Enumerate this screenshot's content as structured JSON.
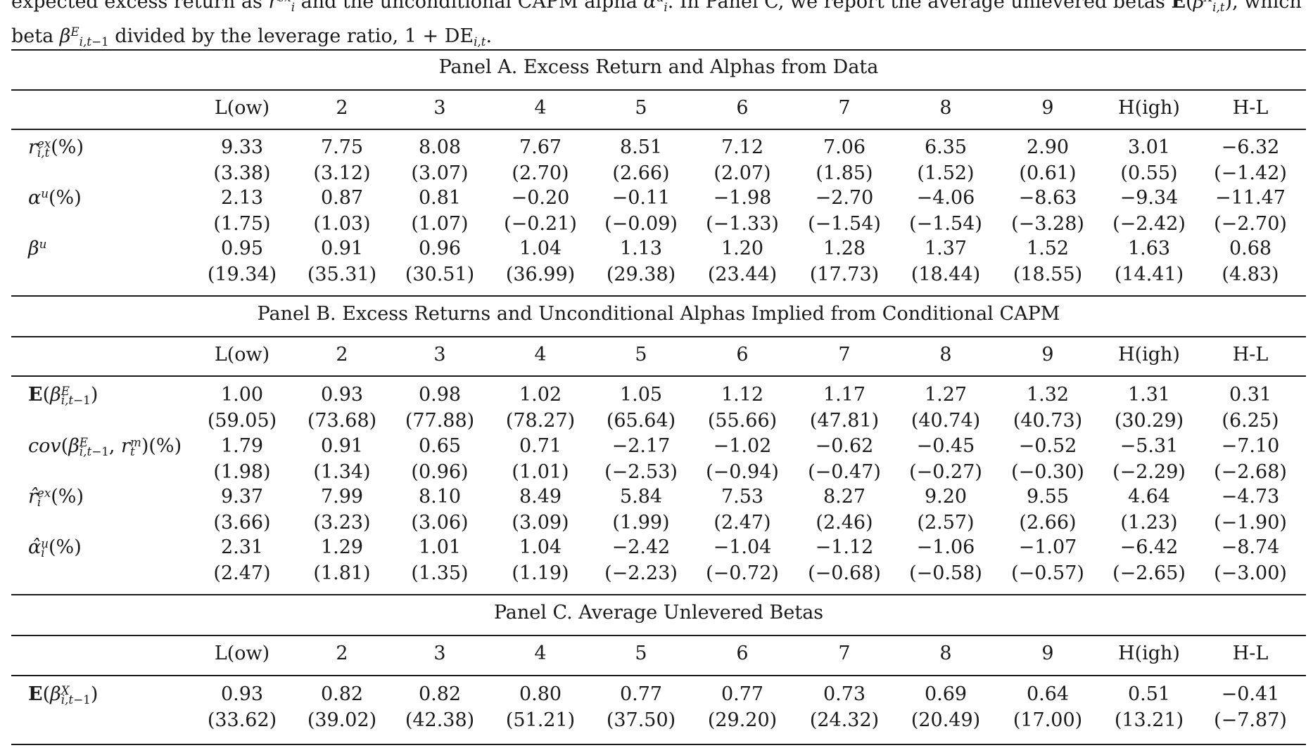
{
  "caption": {
    "line1_a": "expected excess return as ",
    "line1_b": " and the unconditional CAPM alpha ",
    "line1_c": ". In Panel C, we report the average unlevered betas ",
    "line1_d": ", which is the equity",
    "line2_a": "beta ",
    "line2_b": " divided by the leverage ratio, ",
    "line2_c": "1 + DE",
    "line2_d": "."
  },
  "columns": [
    "L(ow)",
    "2",
    "3",
    "4",
    "5",
    "6",
    "7",
    "8",
    "9",
    "H(igh)",
    "H-L"
  ],
  "panel_a": {
    "title": "Panel A. Excess Return and Alphas from Data",
    "rows": [
      {
        "label": "r_ex",
        "values": [
          "9.33",
          "7.75",
          "8.08",
          "7.67",
          "8.51",
          "7.12",
          "7.06",
          "6.35",
          "2.90",
          "3.01",
          "−6.32"
        ],
        "tstats": [
          "(3.38)",
          "(3.12)",
          "(3.07)",
          "(2.70)",
          "(2.66)",
          "(2.07)",
          "(1.85)",
          "(1.52)",
          "(0.61)",
          "(0.55)",
          "(−1.42)"
        ]
      },
      {
        "label": "alpha_u",
        "values": [
          "2.13",
          "0.87",
          "0.81",
          "−0.20",
          "−0.11",
          "−1.98",
          "−2.70",
          "−4.06",
          "−8.63",
          "−9.34",
          "−11.47"
        ],
        "tstats": [
          "(1.75)",
          "(1.03)",
          "(1.07)",
          "(−0.21)",
          "(−0.09)",
          "(−1.33)",
          "(−1.54)",
          "(−1.54)",
          "(−3.28)",
          "(−2.42)",
          "(−2.70)"
        ]
      },
      {
        "label": "beta_u",
        "values": [
          "0.95",
          "0.91",
          "0.96",
          "1.04",
          "1.13",
          "1.20",
          "1.28",
          "1.37",
          "1.52",
          "1.63",
          "0.68"
        ],
        "tstats": [
          "(19.34)",
          "(35.31)",
          "(30.51)",
          "(36.99)",
          "(29.38)",
          "(23.44)",
          "(17.73)",
          "(18.44)",
          "(18.55)",
          "(14.41)",
          "(4.83)"
        ]
      }
    ]
  },
  "panel_b": {
    "title": "Panel B. Excess Returns and Unconditional Alphas Implied from Conditional CAPM",
    "rows": [
      {
        "label": "E_beta_E",
        "values": [
          "1.00",
          "0.93",
          "0.98",
          "1.02",
          "1.05",
          "1.12",
          "1.17",
          "1.27",
          "1.32",
          "1.31",
          "0.31"
        ],
        "tstats": [
          "(59.05)",
          "(73.68)",
          "(77.88)",
          "(78.27)",
          "(65.64)",
          "(55.66)",
          "(47.81)",
          "(40.74)",
          "(40.73)",
          "(30.29)",
          "(6.25)"
        ]
      },
      {
        "label": "cov",
        "values": [
          "1.79",
          "0.91",
          "0.65",
          "0.71",
          "−2.17",
          "−1.02",
          "−0.62",
          "−0.45",
          "−0.52",
          "−5.31",
          "−7.10"
        ],
        "tstats": [
          "(1.98)",
          "(1.34)",
          "(0.96)",
          "(1.01)",
          "(−2.53)",
          "(−0.94)",
          "(−0.47)",
          "(−0.27)",
          "(−0.30)",
          "(−2.29)",
          "(−2.68)"
        ]
      },
      {
        "label": "r_hat",
        "values": [
          "9.37",
          "7.99",
          "8.10",
          "8.49",
          "5.84",
          "7.53",
          "8.27",
          "9.20",
          "9.55",
          "4.64",
          "−4.73"
        ],
        "tstats": [
          "(3.66)",
          "(3.23)",
          "(3.06)",
          "(3.09)",
          "(1.99)",
          "(2.47)",
          "(2.46)",
          "(2.57)",
          "(2.66)",
          "(1.23)",
          "(−1.90)"
        ]
      },
      {
        "label": "alpha_hat",
        "values": [
          "2.31",
          "1.29",
          "1.01",
          "1.04",
          "−2.42",
          "−1.04",
          "−1.12",
          "−1.06",
          "−1.07",
          "−6.42",
          "−8.74"
        ],
        "tstats": [
          "(2.47)",
          "(1.81)",
          "(1.35)",
          "(1.19)",
          "(−2.23)",
          "(−0.72)",
          "(−0.68)",
          "(−0.58)",
          "(−0.57)",
          "(−2.65)",
          "(−3.00)"
        ]
      }
    ]
  },
  "panel_c": {
    "title": "Panel C. Average Unlevered Betas",
    "rows": [
      {
        "label": "E_beta_X",
        "values": [
          "0.93",
          "0.82",
          "0.82",
          "0.80",
          "0.77",
          "0.77",
          "0.73",
          "0.69",
          "0.64",
          "0.51",
          "−0.41"
        ],
        "tstats": [
          "(33.62)",
          "(39.02)",
          "(42.38)",
          "(51.21)",
          "(37.50)",
          "(29.20)",
          "(24.32)",
          "(20.49)",
          "(17.00)",
          "(13.21)",
          "(−7.87)"
        ]
      }
    ]
  }
}
